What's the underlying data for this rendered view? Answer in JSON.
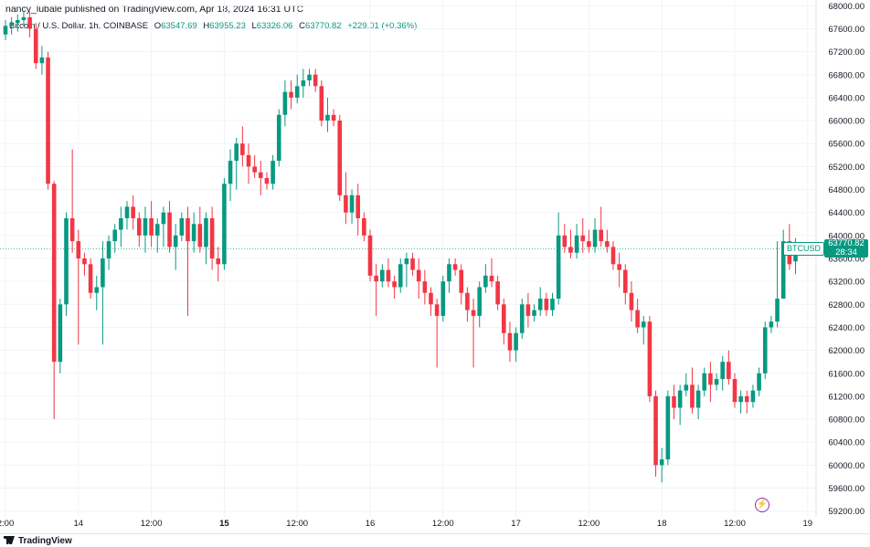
{
  "header": {
    "published_line": "nancy_lubale published on TradingView.com, Apr 18, 2024 16:31 UTC"
  },
  "legend": {
    "symbol": "Bitcoin / U.S. Dollar, 1h, COINBASE",
    "open_key": "O",
    "open": "63547.69",
    "high_key": "H",
    "high": "63955.23",
    "low_key": "L",
    "low": "63326.06",
    "close_key": "C",
    "close": "63770.82",
    "change": "+229.01 (+0.36%)"
  },
  "price_tag": {
    "symbol": "BTCUSD",
    "price": "63770.82",
    "countdown": "28:34"
  },
  "footer": {
    "brand": "TradingView"
  },
  "colors": {
    "up": "#089981",
    "down": "#f23645",
    "grid": "#f0f3fa",
    "axis_text": "#131722"
  },
  "icons": {
    "bottom_right": "lightning-bolt-icon",
    "brand": "tradingview-logo-icon"
  },
  "chart_data": {
    "type": "candlestick",
    "title": "",
    "xlabel": "",
    "ylabel": "",
    "ylim": [
      59100,
      68100
    ],
    "yticks": [
      59200,
      59600,
      60000,
      60400,
      60800,
      61200,
      61600,
      62000,
      62400,
      62800,
      63200,
      63600,
      64000,
      64400,
      64800,
      65200,
      65600,
      66000,
      66400,
      66800,
      67200,
      67600,
      68000
    ],
    "ytick_labels": [
      "59200.00",
      "59600.00",
      "60000.00",
      "60400.00",
      "60800.00",
      "61200.00",
      "61600.00",
      "62000.00",
      "62400.00",
      "62800.00",
      "63200.00",
      "63600.00",
      "64000.00",
      "64400.00",
      "64800.00",
      "65200.00",
      "65600.00",
      "66000.00",
      "66400.00",
      "66800.00",
      "67200.00",
      "67600.00",
      "68000.00"
    ],
    "xticks": [
      {
        "label": "2:00",
        "hour": 0,
        "bold": false
      },
      {
        "label": "14",
        "hour": 12,
        "bold": false
      },
      {
        "label": "12:00",
        "hour": 24,
        "bold": false
      },
      {
        "label": "15",
        "hour": 36,
        "bold": true
      },
      {
        "label": "12:00",
        "hour": 48,
        "bold": false
      },
      {
        "label": "16",
        "hour": 60,
        "bold": false
      },
      {
        "label": "12:00",
        "hour": 72,
        "bold": false
      },
      {
        "label": "17",
        "hour": 84,
        "bold": false
      },
      {
        "label": "12:00",
        "hour": 96,
        "bold": false
      },
      {
        "label": "18",
        "hour": 108,
        "bold": false
      },
      {
        "label": "12:00",
        "hour": 120,
        "bold": false
      },
      {
        "label": "19",
        "hour": 132,
        "bold": false
      }
    ],
    "last_price": 63770.82,
    "ohlc": [
      [
        67500,
        67750,
        67400,
        67650
      ],
      [
        67650,
        67800,
        67500,
        67700
      ],
      [
        67700,
        67850,
        67550,
        67750
      ],
      [
        67750,
        67900,
        67650,
        67800
      ],
      [
        67800,
        67900,
        67450,
        67600
      ],
      [
        67600,
        67700,
        66900,
        67000
      ],
      [
        67000,
        67300,
        66800,
        67100
      ],
      [
        67100,
        67200,
        64800,
        64900
      ],
      [
        64900,
        64950,
        60800,
        61800
      ],
      [
        61800,
        62900,
        61600,
        62800
      ],
      [
        62800,
        64400,
        62600,
        64300
      ],
      [
        64300,
        65500,
        63700,
        63900
      ],
      [
        63900,
        64100,
        62100,
        63600
      ],
      [
        63600,
        63700,
        63300,
        63500
      ],
      [
        63500,
        63600,
        62900,
        63000
      ],
      [
        63000,
        63300,
        62700,
        63100
      ],
      [
        63100,
        63900,
        62100,
        63600
      ],
      [
        63600,
        64000,
        63400,
        63900
      ],
      [
        63900,
        64200,
        63700,
        64100
      ],
      [
        64100,
        64500,
        63800,
        64300
      ],
      [
        64300,
        64600,
        64100,
        64500
      ],
      [
        64500,
        64700,
        64100,
        64300
      ],
      [
        64300,
        64400,
        63800,
        64000
      ],
      [
        64000,
        64500,
        63700,
        64300
      ],
      [
        64300,
        64600,
        63800,
        64000
      ],
      [
        64000,
        64300,
        63700,
        64200
      ],
      [
        64200,
        64500,
        63800,
        64400
      ],
      [
        64400,
        64600,
        63700,
        63800
      ],
      [
        63800,
        64200,
        63400,
        64000
      ],
      [
        64000,
        64400,
        63900,
        64300
      ],
      [
        64300,
        64500,
        62600,
        63900
      ],
      [
        63900,
        64400,
        63700,
        64200
      ],
      [
        64200,
        64500,
        63700,
        63800
      ],
      [
        63800,
        64400,
        63500,
        64300
      ],
      [
        64300,
        64500,
        63400,
        63600
      ],
      [
        63600,
        63800,
        63200,
        63500
      ],
      [
        63500,
        65000,
        63400,
        64900
      ],
      [
        64900,
        65500,
        64600,
        65300
      ],
      [
        65300,
        65700,
        64800,
        65600
      ],
      [
        65600,
        65900,
        65200,
        65400
      ],
      [
        65400,
        65600,
        64900,
        65200
      ],
      [
        65200,
        65400,
        65000,
        65100
      ],
      [
        65100,
        65300,
        64700,
        65000
      ],
      [
        65000,
        65100,
        64800,
        64900
      ],
      [
        64900,
        65400,
        64800,
        65300
      ],
      [
        65300,
        66200,
        65200,
        66100
      ],
      [
        66100,
        66700,
        65900,
        66500
      ],
      [
        66500,
        66700,
        66200,
        66400
      ],
      [
        66400,
        66800,
        66300,
        66600
      ],
      [
        66600,
        66900,
        66400,
        66700
      ],
      [
        66700,
        66900,
        66600,
        66800
      ],
      [
        66800,
        66900,
        66500,
        66600
      ],
      [
        66600,
        66700,
        65900,
        66000
      ],
      [
        66000,
        66400,
        65800,
        66100
      ],
      [
        66100,
        66200,
        65900,
        66000
      ],
      [
        66000,
        66100,
        64600,
        64700
      ],
      [
        64700,
        65100,
        64200,
        64400
      ],
      [
        64400,
        64800,
        64200,
        64700
      ],
      [
        64700,
        64900,
        64000,
        64300
      ],
      [
        64300,
        64400,
        63900,
        64000
      ],
      [
        64000,
        64100,
        63200,
        63300
      ],
      [
        63300,
        63500,
        62600,
        63200
      ],
      [
        63200,
        63500,
        63100,
        63400
      ],
      [
        63400,
        63600,
        63100,
        63200
      ],
      [
        63200,
        63300,
        62900,
        63100
      ],
      [
        63100,
        63600,
        63000,
        63500
      ],
      [
        63500,
        63700,
        63100,
        63600
      ],
      [
        63600,
        63700,
        63300,
        63400
      ],
      [
        63400,
        63600,
        62900,
        63200
      ],
      [
        63200,
        63400,
        62800,
        63000
      ],
      [
        63000,
        63100,
        62600,
        62800
      ],
      [
        62800,
        62900,
        61700,
        62600
      ],
      [
        62600,
        63300,
        62500,
        63200
      ],
      [
        63200,
        63600,
        63000,
        63500
      ],
      [
        63500,
        63600,
        63300,
        63400
      ],
      [
        63400,
        63500,
        62800,
        63000
      ],
      [
        63000,
        63100,
        62500,
        62700
      ],
      [
        62700,
        62900,
        61700,
        62600
      ],
      [
        62600,
        63200,
        62400,
        63100
      ],
      [
        63100,
        63500,
        63000,
        63300
      ],
      [
        63300,
        63600,
        63100,
        63200
      ],
      [
        63200,
        63300,
        62700,
        62800
      ],
      [
        62800,
        62900,
        62100,
        62300
      ],
      [
        62300,
        62500,
        61800,
        62000
      ],
      [
        62000,
        62400,
        61800,
        62300
      ],
      [
        62300,
        62900,
        62200,
        62800
      ],
      [
        62800,
        63000,
        62400,
        62600
      ],
      [
        62600,
        62800,
        62500,
        62700
      ],
      [
        62700,
        63100,
        62600,
        62900
      ],
      [
        62900,
        63000,
        62600,
        62700
      ],
      [
        62700,
        63000,
        62600,
        62900
      ],
      [
        62900,
        64400,
        62800,
        64000
      ],
      [
        64000,
        64200,
        63700,
        63800
      ],
      [
        63800,
        64100,
        63600,
        63700
      ],
      [
        63700,
        64200,
        63600,
        64000
      ],
      [
        64000,
        64300,
        63700,
        63900
      ],
      [
        63900,
        64100,
        63700,
        63800
      ],
      [
        63800,
        64300,
        63700,
        64100
      ],
      [
        64100,
        64500,
        63800,
        63900
      ],
      [
        63900,
        64100,
        63700,
        63800
      ],
      [
        63800,
        63900,
        63400,
        63500
      ],
      [
        63500,
        63700,
        63100,
        63400
      ],
      [
        63400,
        63500,
        62800,
        63000
      ],
      [
        63000,
        63200,
        62500,
        62700
      ],
      [
        62700,
        62900,
        62300,
        62400
      ],
      [
        62400,
        62600,
        62100,
        62500
      ],
      [
        62500,
        62600,
        61100,
        61200
      ],
      [
        61200,
        61300,
        59800,
        60000
      ],
      [
        60000,
        60300,
        59700,
        60100
      ],
      [
        60100,
        61300,
        60000,
        61200
      ],
      [
        61200,
        61400,
        60800,
        61000
      ],
      [
        61000,
        61400,
        60700,
        61300
      ],
      [
        61300,
        61600,
        61200,
        61400
      ],
      [
        61400,
        61700,
        60900,
        61000
      ],
      [
        61000,
        61400,
        60800,
        61300
      ],
      [
        61300,
        61700,
        61200,
        61600
      ],
      [
        61600,
        61800,
        61100,
        61400
      ],
      [
        61400,
        61600,
        61300,
        61500
      ],
      [
        61500,
        61900,
        61300,
        61800
      ],
      [
        61800,
        62000,
        61400,
        61500
      ],
      [
        61500,
        61600,
        61000,
        61100
      ],
      [
        61100,
        61300,
        60900,
        61200
      ],
      [
        61200,
        61300,
        60900,
        61100
      ],
      [
        61100,
        61400,
        61000,
        61300
      ],
      [
        61300,
        61700,
        61200,
        61600
      ],
      [
        61600,
        62500,
        61500,
        62400
      ],
      [
        62400,
        62600,
        62300,
        62500
      ],
      [
        62500,
        63900,
        62400,
        62900
      ],
      [
        62900,
        64100,
        62900,
        63900
      ],
      [
        63900,
        64200,
        63400,
        63500
      ],
      [
        63547.69,
        63955.23,
        63326.06,
        63770.82
      ]
    ]
  }
}
